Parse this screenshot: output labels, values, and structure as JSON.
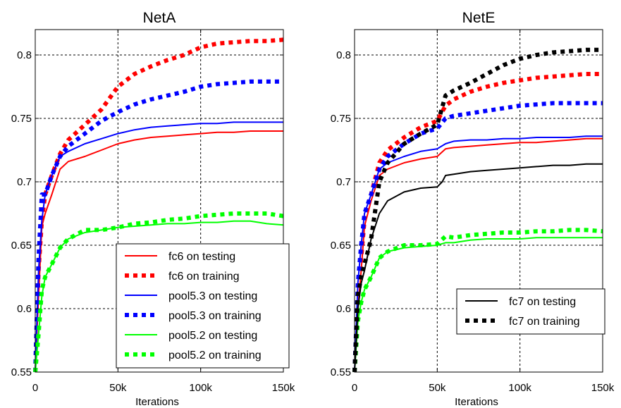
{
  "chart_data": [
    {
      "type": "line",
      "title": "NetA",
      "xlabel": "Iterations",
      "ylabel": "",
      "xlim": [
        0,
        150
      ],
      "ylim": [
        0.55,
        0.82
      ],
      "x_ticks": [
        0,
        50,
        100,
        150
      ],
      "x_tick_labels": [
        "0",
        "50k",
        "100k",
        "150k"
      ],
      "y_ticks": [
        0.55,
        0.6,
        0.65,
        0.7,
        0.75,
        0.8
      ],
      "y_tick_labels": [
        "0.55",
        "0.6",
        "0.65",
        "0.7",
        "0.75",
        "0.8"
      ],
      "grid": true,
      "legend_position": "bottom-right",
      "series": [
        {
          "name": "fc6 on testing",
          "color": "#ff0000",
          "style": "solid",
          "x": [
            0,
            2,
            4,
            6,
            10,
            15,
            20,
            30,
            40,
            50,
            60,
            70,
            80,
            90,
            100,
            110,
            120,
            130,
            140,
            150
          ],
          "values": [
            0.55,
            0.61,
            0.665,
            0.675,
            0.69,
            0.71,
            0.716,
            0.72,
            0.725,
            0.73,
            0.733,
            0.735,
            0.736,
            0.737,
            0.738,
            0.739,
            0.739,
            0.74,
            0.74,
            0.74
          ]
        },
        {
          "name": "fc6 on training",
          "color": "#ff0000",
          "style": "dotted",
          "x": [
            0,
            2,
            4,
            6,
            10,
            15,
            20,
            30,
            40,
            50,
            60,
            70,
            80,
            90,
            100,
            110,
            120,
            130,
            140,
            150
          ],
          "values": [
            0.55,
            0.63,
            0.67,
            0.69,
            0.705,
            0.722,
            0.733,
            0.745,
            0.757,
            0.775,
            0.785,
            0.791,
            0.796,
            0.8,
            0.806,
            0.809,
            0.81,
            0.811,
            0.811,
            0.812
          ]
        },
        {
          "name": "pool5.3 on testing",
          "color": "#0000ff",
          "style": "solid",
          "x": [
            0,
            2,
            4,
            6,
            10,
            15,
            20,
            30,
            40,
            50,
            60,
            70,
            80,
            90,
            100,
            110,
            120,
            130,
            140,
            150
          ],
          "values": [
            0.55,
            0.63,
            0.67,
            0.69,
            0.705,
            0.72,
            0.724,
            0.73,
            0.734,
            0.738,
            0.741,
            0.743,
            0.744,
            0.745,
            0.746,
            0.746,
            0.747,
            0.747,
            0.747,
            0.747
          ]
        },
        {
          "name": "pool5.3 on training",
          "color": "#0000ff",
          "style": "dotted",
          "x": [
            0,
            2,
            4,
            6,
            10,
            15,
            20,
            30,
            40,
            50,
            60,
            70,
            80,
            90,
            100,
            110,
            120,
            130,
            140,
            150
          ],
          "values": [
            0.55,
            0.64,
            0.69,
            0.69,
            0.705,
            0.72,
            0.728,
            0.738,
            0.748,
            0.755,
            0.761,
            0.765,
            0.768,
            0.771,
            0.775,
            0.777,
            0.778,
            0.779,
            0.779,
            0.779
          ]
        },
        {
          "name": "pool5.2 on testing",
          "color": "#00ff00",
          "style": "solid",
          "x": [
            0,
            2,
            4,
            6,
            10,
            15,
            20,
            30,
            40,
            50,
            60,
            70,
            80,
            90,
            100,
            110,
            120,
            130,
            140,
            150
          ],
          "values": [
            0.55,
            0.58,
            0.61,
            0.625,
            0.635,
            0.648,
            0.655,
            0.66,
            0.662,
            0.664,
            0.665,
            0.666,
            0.667,
            0.667,
            0.668,
            0.668,
            0.669,
            0.669,
            0.667,
            0.666
          ]
        },
        {
          "name": "pool5.2 on training",
          "color": "#00ff00",
          "style": "dotted",
          "x": [
            0,
            2,
            4,
            6,
            10,
            15,
            20,
            30,
            40,
            50,
            60,
            70,
            80,
            90,
            100,
            110,
            120,
            130,
            140,
            150
          ],
          "values": [
            0.55,
            0.58,
            0.615,
            0.625,
            0.635,
            0.648,
            0.655,
            0.662,
            0.662,
            0.664,
            0.667,
            0.668,
            0.67,
            0.671,
            0.673,
            0.674,
            0.675,
            0.675,
            0.675,
            0.673
          ]
        }
      ]
    },
    {
      "type": "line",
      "title": "NetE",
      "xlabel": "Iterations",
      "ylabel": "",
      "xlim": [
        0,
        150
      ],
      "ylim": [
        0.55,
        0.82
      ],
      "x_ticks": [
        0,
        50,
        100,
        150
      ],
      "x_tick_labels": [
        "0",
        "50k",
        "100k",
        "150k"
      ],
      "y_ticks": [
        0.55,
        0.6,
        0.65,
        0.7,
        0.75,
        0.8
      ],
      "y_tick_labels": [
        "0.55",
        "0.6",
        "0.65",
        "0.7",
        "0.75",
        "0.8"
      ],
      "grid": true,
      "legend_position": "bottom-right",
      "series": [
        {
          "name": "fc6 on testing",
          "color": "#ff0000",
          "style": "solid",
          "show_in_legend": false,
          "x": [
            0,
            2,
            4,
            6,
            10,
            15,
            20,
            30,
            40,
            50,
            55,
            60,
            70,
            80,
            90,
            100,
            110,
            120,
            130,
            140,
            150
          ],
          "values": [
            0.55,
            0.6,
            0.63,
            0.665,
            0.685,
            0.705,
            0.71,
            0.715,
            0.718,
            0.72,
            0.726,
            0.727,
            0.728,
            0.729,
            0.73,
            0.731,
            0.731,
            0.732,
            0.733,
            0.734,
            0.734
          ]
        },
        {
          "name": "fc6 on training",
          "color": "#ff0000",
          "style": "dotted",
          "show_in_legend": false,
          "x": [
            0,
            2,
            4,
            6,
            10,
            15,
            20,
            30,
            40,
            50,
            55,
            60,
            70,
            80,
            90,
            100,
            110,
            120,
            130,
            140,
            150
          ],
          "values": [
            0.55,
            0.61,
            0.64,
            0.67,
            0.69,
            0.715,
            0.725,
            0.735,
            0.743,
            0.748,
            0.76,
            0.765,
            0.771,
            0.775,
            0.778,
            0.78,
            0.782,
            0.783,
            0.784,
            0.785,
            0.785
          ]
        },
        {
          "name": "pool5.3 on testing",
          "color": "#0000ff",
          "style": "solid",
          "show_in_legend": false,
          "x": [
            0,
            2,
            4,
            6,
            10,
            15,
            20,
            30,
            40,
            50,
            55,
            60,
            70,
            80,
            90,
            100,
            110,
            120,
            130,
            140,
            150
          ],
          "values": [
            0.55,
            0.62,
            0.65,
            0.675,
            0.69,
            0.71,
            0.715,
            0.72,
            0.724,
            0.726,
            0.73,
            0.732,
            0.733,
            0.733,
            0.734,
            0.734,
            0.735,
            0.735,
            0.735,
            0.736,
            0.736
          ]
        },
        {
          "name": "pool5.3 on training",
          "color": "#0000ff",
          "style": "dotted",
          "show_in_legend": false,
          "x": [
            0,
            2,
            4,
            6,
            10,
            15,
            20,
            30,
            40,
            50,
            55,
            60,
            70,
            80,
            90,
            100,
            110,
            120,
            130,
            140,
            150
          ],
          "values": [
            0.55,
            0.62,
            0.65,
            0.675,
            0.69,
            0.71,
            0.72,
            0.73,
            0.738,
            0.742,
            0.75,
            0.752,
            0.754,
            0.756,
            0.758,
            0.76,
            0.761,
            0.762,
            0.762,
            0.762,
            0.762
          ]
        },
        {
          "name": "pool5.2 on testing",
          "color": "#00ff00",
          "style": "solid",
          "show_in_legend": false,
          "x": [
            0,
            2,
            4,
            6,
            10,
            15,
            20,
            30,
            40,
            50,
            55,
            60,
            70,
            80,
            90,
            100,
            110,
            120,
            130,
            140,
            150
          ],
          "values": [
            0.55,
            0.59,
            0.605,
            0.615,
            0.625,
            0.64,
            0.645,
            0.648,
            0.649,
            0.65,
            0.652,
            0.652,
            0.654,
            0.655,
            0.655,
            0.655,
            0.656,
            0.656,
            0.656,
            0.656,
            0.656
          ]
        },
        {
          "name": "pool5.2 on training",
          "color": "#00ff00",
          "style": "dotted",
          "show_in_legend": false,
          "x": [
            0,
            2,
            4,
            6,
            10,
            15,
            20,
            30,
            40,
            50,
            55,
            60,
            70,
            80,
            90,
            100,
            110,
            120,
            130,
            140,
            150
          ],
          "values": [
            0.55,
            0.59,
            0.605,
            0.615,
            0.625,
            0.64,
            0.645,
            0.65,
            0.65,
            0.651,
            0.657,
            0.656,
            0.658,
            0.659,
            0.66,
            0.66,
            0.661,
            0.661,
            0.662,
            0.662,
            0.661
          ]
        },
        {
          "name": "fc7 on testing",
          "color": "#000000",
          "style": "solid",
          "show_in_legend": true,
          "x": [
            0,
            2,
            4,
            6,
            10,
            15,
            20,
            30,
            40,
            50,
            53,
            55,
            60,
            70,
            80,
            90,
            100,
            110,
            120,
            130,
            140,
            150
          ],
          "values": [
            0.55,
            0.6,
            0.62,
            0.63,
            0.655,
            0.675,
            0.685,
            0.692,
            0.695,
            0.696,
            0.7,
            0.705,
            0.706,
            0.708,
            0.709,
            0.71,
            0.711,
            0.712,
            0.713,
            0.713,
            0.714,
            0.714
          ]
        },
        {
          "name": "fc7 on training",
          "color": "#000000",
          "style": "dotted",
          "show_in_legend": true,
          "x": [
            0,
            2,
            4,
            6,
            10,
            15,
            20,
            30,
            40,
            50,
            55,
            60,
            70,
            80,
            90,
            100,
            110,
            120,
            130,
            140,
            150
          ],
          "values": [
            0.55,
            0.61,
            0.625,
            0.635,
            0.655,
            0.7,
            0.715,
            0.73,
            0.738,
            0.745,
            0.768,
            0.772,
            0.778,
            0.785,
            0.792,
            0.797,
            0.8,
            0.802,
            0.803,
            0.804,
            0.804
          ]
        }
      ]
    }
  ]
}
